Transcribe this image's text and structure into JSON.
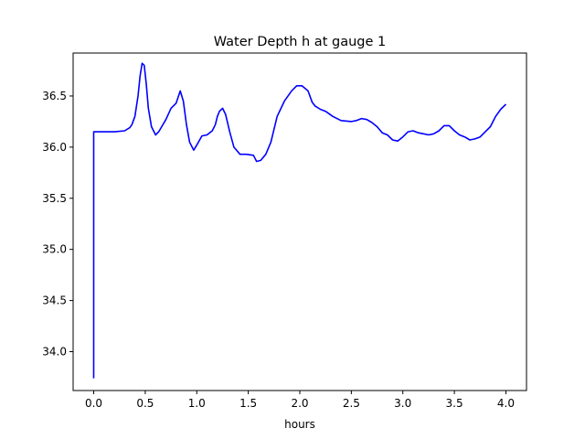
{
  "chart_data": {
    "type": "line",
    "title": "Water Depth h at gauge 1",
    "xlabel": "hours",
    "ylabel": "",
    "xlim": [
      -0.2,
      4.2
    ],
    "ylim": [
      33.62,
      36.92
    ],
    "xticks": [
      0.0,
      0.5,
      1.0,
      1.5,
      2.0,
      2.5,
      3.0,
      3.5,
      4.0
    ],
    "xtick_labels": [
      "0.0",
      "0.5",
      "1.0",
      "1.5",
      "2.0",
      "2.5",
      "3.0",
      "3.5",
      "4.0"
    ],
    "yticks": [
      34.0,
      34.5,
      35.0,
      35.5,
      36.0,
      36.5
    ],
    "ytick_labels": [
      "34.0",
      "34.5",
      "35.0",
      "35.5",
      "36.0",
      "36.5"
    ],
    "grid": false,
    "series": [
      {
        "color": "#0000ff",
        "x": [
          0.0,
          0.0,
          0.01,
          0.1,
          0.2,
          0.3,
          0.35,
          0.37,
          0.4,
          0.43,
          0.45,
          0.47,
          0.49,
          0.51,
          0.53,
          0.56,
          0.6,
          0.63,
          0.66,
          0.7,
          0.75,
          0.8,
          0.84,
          0.87,
          0.9,
          0.93,
          0.97,
          1.0,
          1.05,
          1.1,
          1.15,
          1.18,
          1.2,
          1.22,
          1.25,
          1.28,
          1.32,
          1.36,
          1.42,
          1.48,
          1.55,
          1.58,
          1.62,
          1.67,
          1.72,
          1.78,
          1.85,
          1.92,
          1.97,
          2.02,
          2.08,
          2.12,
          2.15,
          2.2,
          2.25,
          2.32,
          2.4,
          2.5,
          2.55,
          2.6,
          2.65,
          2.7,
          2.75,
          2.8,
          2.85,
          2.9,
          2.95,
          3.0,
          3.05,
          3.1,
          3.15,
          3.2,
          3.25,
          3.3,
          3.35,
          3.4,
          3.45,
          3.5,
          3.55,
          3.6,
          3.65,
          3.7,
          3.75,
          3.8,
          3.85,
          3.9,
          3.95,
          4.0
        ],
        "y": [
          33.74,
          36.15,
          36.15,
          36.15,
          36.15,
          36.16,
          36.19,
          36.22,
          36.3,
          36.5,
          36.7,
          36.82,
          36.8,
          36.62,
          36.38,
          36.2,
          36.12,
          36.15,
          36.2,
          36.27,
          36.38,
          36.43,
          36.55,
          36.45,
          36.22,
          36.05,
          35.97,
          36.02,
          36.11,
          36.12,
          36.16,
          36.22,
          36.3,
          36.35,
          36.38,
          36.32,
          36.15,
          36.0,
          35.93,
          35.93,
          35.92,
          35.86,
          35.87,
          35.93,
          36.05,
          36.3,
          36.45,
          36.55,
          36.6,
          36.6,
          36.55,
          36.44,
          36.4,
          36.37,
          36.35,
          36.3,
          36.26,
          36.25,
          36.26,
          36.28,
          36.27,
          36.24,
          36.2,
          36.14,
          36.12,
          36.07,
          36.06,
          36.1,
          36.15,
          36.16,
          36.14,
          36.13,
          36.12,
          36.13,
          36.16,
          36.21,
          36.21,
          36.16,
          36.12,
          36.1,
          36.07,
          36.08,
          36.1,
          36.15,
          36.2,
          36.3,
          36.37,
          36.42
        ]
      }
    ]
  }
}
